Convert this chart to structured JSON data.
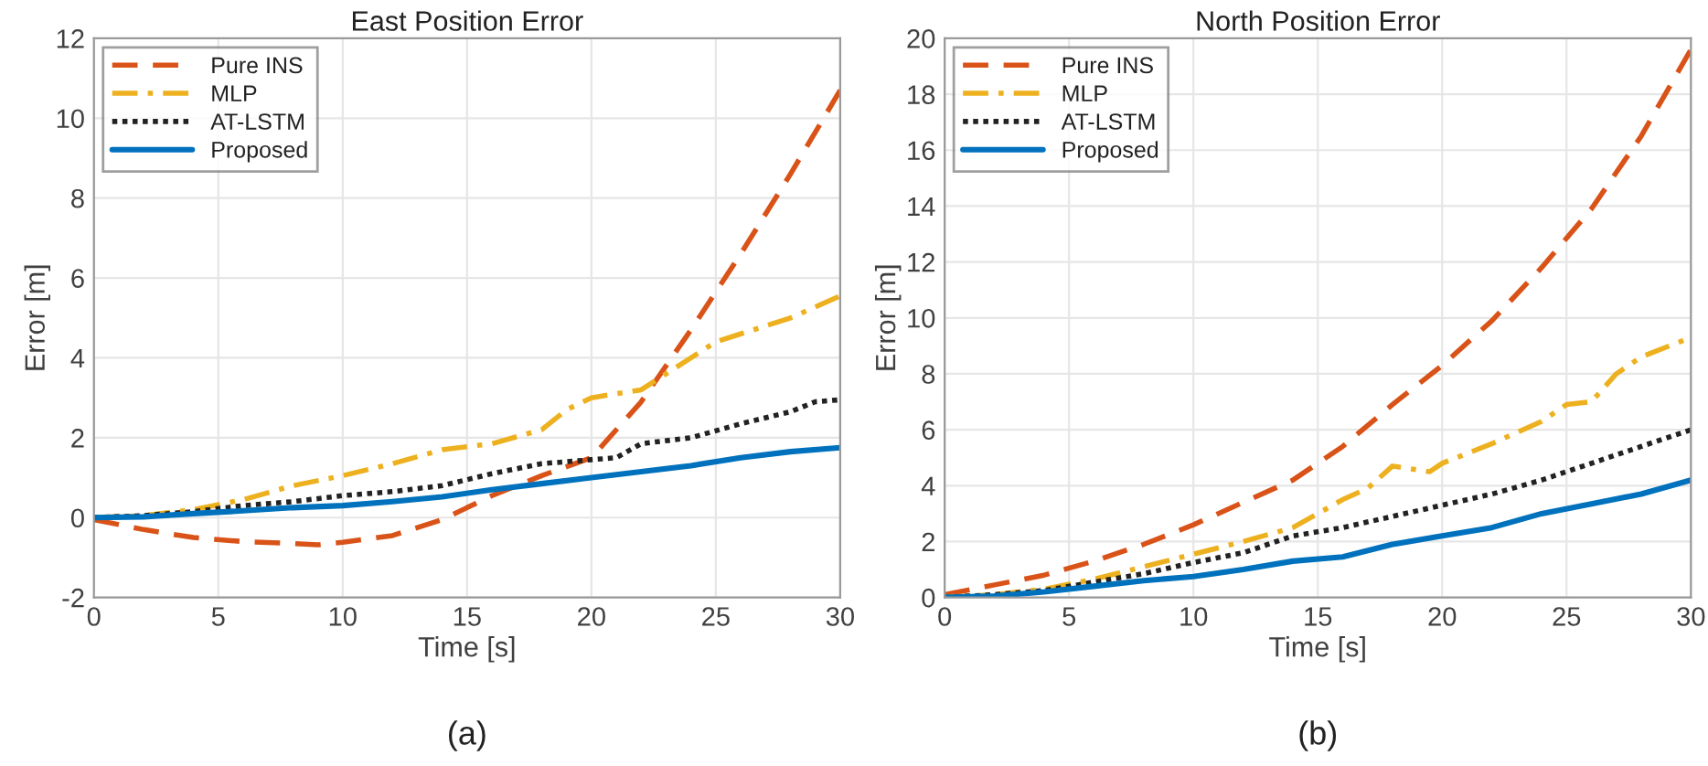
{
  "chart_data": [
    {
      "type": "line",
      "title": "East Position Error",
      "xlabel": "Time [s]",
      "ylabel": "Error [m]",
      "annotations": [
        "(a)"
      ],
      "xlim": [
        0,
        30
      ],
      "ylim": [
        -2,
        12
      ],
      "xticks": [
        0,
        5,
        10,
        15,
        20,
        25,
        30
      ],
      "yticks": [
        -2,
        0,
        2,
        4,
        6,
        8,
        10,
        12
      ],
      "grid": true,
      "legend": "top left",
      "series": [
        {
          "name": "Pure INS",
          "color": "#d95319",
          "line_style": "dashed",
          "x": [
            0,
            2,
            4,
            6,
            8,
            9,
            10,
            12,
            14,
            16,
            18,
            20,
            22,
            24,
            26,
            28,
            30
          ],
          "values": [
            -0.05,
            -0.3,
            -0.5,
            -0.6,
            -0.65,
            -0.68,
            -0.62,
            -0.45,
            -0.05,
            0.55,
            1.05,
            1.5,
            2.9,
            4.7,
            6.6,
            8.6,
            10.7
          ]
        },
        {
          "name": "MLP",
          "color": "#edb120",
          "line_style": "dashdot",
          "x": [
            0,
            2,
            4,
            6,
            8,
            10,
            12,
            14,
            16,
            18,
            19,
            20,
            22,
            24,
            25,
            26,
            28,
            30
          ],
          "values": [
            0,
            0.05,
            0.2,
            0.45,
            0.8,
            1.05,
            1.35,
            1.7,
            1.85,
            2.2,
            2.7,
            3.0,
            3.2,
            4.0,
            4.4,
            4.6,
            5.0,
            5.55
          ]
        },
        {
          "name": "AT-LSTM",
          "color": "#222222",
          "line_style": "dotted",
          "x": [
            0,
            2,
            4,
            6,
            8,
            10,
            12,
            14,
            16,
            18,
            20,
            21,
            22,
            24,
            26,
            28,
            29,
            30
          ],
          "values": [
            0,
            0.05,
            0.15,
            0.3,
            0.4,
            0.55,
            0.65,
            0.8,
            1.1,
            1.35,
            1.45,
            1.5,
            1.85,
            2.0,
            2.35,
            2.65,
            2.9,
            2.95
          ]
        },
        {
          "name": "Proposed",
          "color": "#0072bd",
          "line_style": "solid",
          "x": [
            0,
            2,
            4,
            6,
            8,
            10,
            12,
            14,
            16,
            18,
            20,
            22,
            24,
            26,
            28,
            30
          ],
          "values": [
            0,
            0.02,
            0.1,
            0.17,
            0.25,
            0.3,
            0.4,
            0.52,
            0.7,
            0.85,
            1.0,
            1.15,
            1.3,
            1.5,
            1.65,
            1.75
          ]
        }
      ]
    },
    {
      "type": "line",
      "title": "North Position Error",
      "xlabel": "Time [s]",
      "ylabel": "Error [m]",
      "annotations": [
        "(b)"
      ],
      "xlim": [
        0,
        30
      ],
      "ylim": [
        0,
        20
      ],
      "xticks": [
        0,
        5,
        10,
        15,
        20,
        25,
        30
      ],
      "yticks": [
        0,
        2,
        4,
        6,
        8,
        10,
        12,
        14,
        16,
        18,
        20
      ],
      "grid": true,
      "legend": "top left",
      "series": [
        {
          "name": "Pure INS",
          "color": "#d95319",
          "line_style": "dashed",
          "x": [
            0,
            2,
            4,
            6,
            8,
            10,
            12,
            14,
            16,
            18,
            20,
            22,
            24,
            26,
            28,
            30
          ],
          "values": [
            0.1,
            0.45,
            0.8,
            1.3,
            1.9,
            2.6,
            3.4,
            4.2,
            5.4,
            6.9,
            8.3,
            9.9,
            11.8,
            13.9,
            16.5,
            19.6
          ]
        },
        {
          "name": "MLP",
          "color": "#edb120",
          "line_style": "dashdot",
          "x": [
            0,
            2,
            4,
            6,
            8,
            10,
            12,
            14,
            16,
            17,
            18,
            19.5,
            20,
            22,
            24,
            25,
            26,
            27,
            28,
            30
          ],
          "values": [
            0,
            0.1,
            0.3,
            0.65,
            1.1,
            1.55,
            2.0,
            2.5,
            3.5,
            3.9,
            4.7,
            4.5,
            4.8,
            5.5,
            6.3,
            6.9,
            7.0,
            8.0,
            8.6,
            9.3
          ]
        },
        {
          "name": "AT-LSTM",
          "color": "#222222",
          "line_style": "dotted",
          "x": [
            0,
            2,
            4,
            6,
            8,
            10,
            12,
            14,
            16,
            18,
            20,
            22,
            24,
            26,
            28,
            30
          ],
          "values": [
            0,
            0.1,
            0.25,
            0.55,
            0.85,
            1.25,
            1.6,
            2.2,
            2.5,
            2.9,
            3.3,
            3.7,
            4.2,
            4.8,
            5.4,
            6.0
          ]
        },
        {
          "name": "Proposed",
          "color": "#0072bd",
          "line_style": "solid",
          "x": [
            0,
            2,
            4,
            6,
            8,
            10,
            12,
            14,
            16,
            18,
            20,
            22,
            24,
            26,
            28,
            30
          ],
          "values": [
            0,
            0.05,
            0.2,
            0.4,
            0.6,
            0.75,
            1.0,
            1.3,
            1.45,
            1.9,
            2.2,
            2.5,
            3.0,
            3.35,
            3.7,
            4.2
          ]
        }
      ]
    }
  ]
}
